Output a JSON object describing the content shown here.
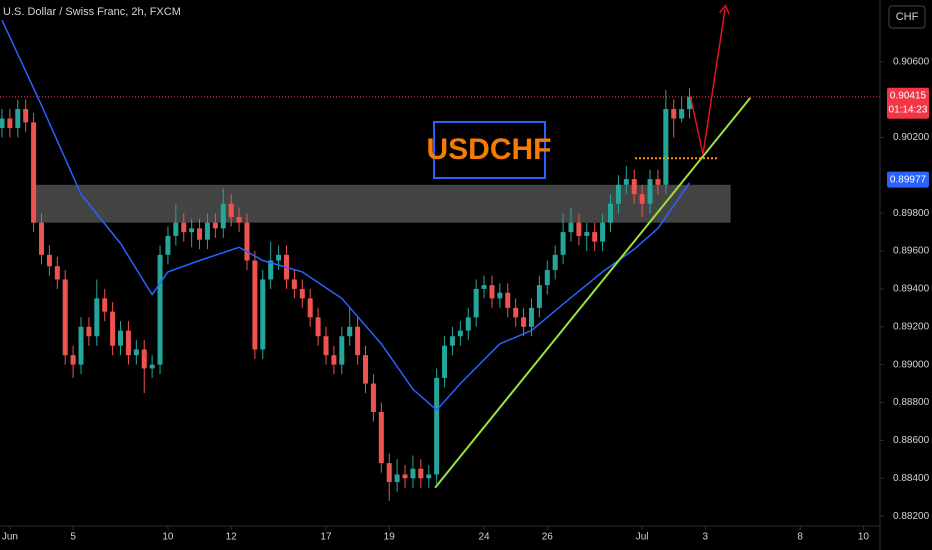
{
  "chart_data": {
    "type": "candlestick",
    "title": "U.S. Dollar / Swiss Franc, 2h, FXCM",
    "annotation_text": "USDCHF",
    "currency_button": "CHF",
    "up_color": "#26a69a",
    "down_color": "#ef5350",
    "xlim": [
      -0.25,
      111.1
    ],
    "ylim": [
      0.88021,
      0.90926
    ],
    "xticks": [
      {
        "value": 1,
        "label": "Jun"
      },
      {
        "value": 9,
        "label": "5"
      },
      {
        "value": 21,
        "label": "10"
      },
      {
        "value": 29,
        "label": "12"
      },
      {
        "value": 41,
        "label": "17"
      },
      {
        "value": 49,
        "label": "19"
      },
      {
        "value": 61,
        "label": "24"
      },
      {
        "value": 69,
        "label": "26"
      },
      {
        "value": 81,
        "label": "Jul"
      },
      {
        "value": 89,
        "label": "3"
      },
      {
        "value": 101,
        "label": "8"
      },
      {
        "value": 109,
        "label": "10"
      }
    ],
    "yticks": [
      {
        "value": 0.906,
        "label": "0.90600"
      },
      {
        "value": 0.902,
        "label": "0.90200"
      },
      {
        "value": 0.898,
        "label": "0.89800"
      },
      {
        "value": 0.896,
        "label": "0.89600"
      },
      {
        "value": 0.894,
        "label": "0.89400"
      },
      {
        "value": 0.892,
        "label": "0.89200"
      },
      {
        "value": 0.89,
        "label": "0.89000"
      },
      {
        "value": 0.888,
        "label": "0.88800"
      },
      {
        "value": 0.886,
        "label": "0.88600"
      },
      {
        "value": 0.884,
        "label": "0.88400"
      },
      {
        "value": 0.882,
        "label": "0.88200"
      }
    ],
    "open": [
      0.9025,
      0.903,
      0.9025,
      0.9035,
      0.9028,
      0.8975,
      0.8958,
      0.8952,
      0.8945,
      0.8905,
      0.89,
      0.892,
      0.8915,
      0.8935,
      0.8928,
      0.891,
      0.8918,
      0.8905,
      0.8908,
      0.8898,
      0.89,
      0.8958,
      0.8968,
      0.8975,
      0.897,
      0.8972,
      0.8966,
      0.8975,
      0.8972,
      0.8985,
      0.8978,
      0.8975,
      0.8955,
      0.8908,
      0.8945,
      0.8955,
      0.8958,
      0.8945,
      0.894,
      0.8935,
      0.8925,
      0.8915,
      0.8905,
      0.89,
      0.8915,
      0.892,
      0.8905,
      0.889,
      0.8875,
      0.8848,
      0.8838,
      0.8842,
      0.884,
      0.8845,
      0.884,
      0.8842,
      0.8893,
      0.891,
      0.8915,
      0.8918,
      0.8925,
      0.894,
      0.8942,
      0.8935,
      0.8938,
      0.893,
      0.8925,
      0.892,
      0.893,
      0.8942,
      0.895,
      0.8958,
      0.897,
      0.8975,
      0.8968,
      0.897,
      0.8965,
      0.8975,
      0.8985,
      0.8995,
      0.8998,
      0.899,
      0.8985,
      0.8998,
      0.8995,
      0.9035,
      0.903,
      0.9035
    ],
    "high": [
      0.9035,
      0.9035,
      0.904,
      0.904,
      0.9033,
      0.898,
      0.8963,
      0.8957,
      0.895,
      0.891,
      0.8925,
      0.8925,
      0.8945,
      0.894,
      0.8933,
      0.8923,
      0.8923,
      0.8913,
      0.8913,
      0.8905,
      0.8963,
      0.8973,
      0.8985,
      0.898,
      0.8977,
      0.8977,
      0.898,
      0.898,
      0.8993,
      0.899,
      0.8983,
      0.898,
      0.896,
      0.895,
      0.8965,
      0.8963,
      0.8963,
      0.895,
      0.8945,
      0.894,
      0.893,
      0.892,
      0.891,
      0.892,
      0.893,
      0.8925,
      0.891,
      0.8895,
      0.888,
      0.8853,
      0.885,
      0.8847,
      0.8852,
      0.885,
      0.8847,
      0.8898,
      0.8915,
      0.892,
      0.8923,
      0.893,
      0.8945,
      0.8947,
      0.8947,
      0.8943,
      0.8943,
      0.8935,
      0.893,
      0.8935,
      0.8947,
      0.8955,
      0.8963,
      0.898,
      0.8983,
      0.898,
      0.8975,
      0.8975,
      0.898,
      0.899,
      0.9,
      0.9005,
      0.9003,
      0.8995,
      0.9003,
      0.9003,
      0.9045,
      0.904,
      0.9042,
      0.9046
    ],
    "low": [
      0.902,
      0.902,
      0.902,
      0.9023,
      0.897,
      0.8953,
      0.8947,
      0.894,
      0.89,
      0.8893,
      0.8895,
      0.891,
      0.891,
      0.8923,
      0.8905,
      0.8905,
      0.89,
      0.89,
      0.8885,
      0.8893,
      0.8895,
      0.8953,
      0.8963,
      0.8965,
      0.8962,
      0.8961,
      0.8961,
      0.8967,
      0.8967,
      0.8973,
      0.897,
      0.895,
      0.8903,
      0.8903,
      0.894,
      0.895,
      0.894,
      0.8935,
      0.893,
      0.892,
      0.891,
      0.89,
      0.8895,
      0.8895,
      0.891,
      0.89,
      0.8885,
      0.887,
      0.8843,
      0.8828,
      0.8833,
      0.8835,
      0.8835,
      0.8835,
      0.8835,
      0.8837,
      0.8888,
      0.8905,
      0.891,
      0.8913,
      0.892,
      0.8935,
      0.893,
      0.893,
      0.8925,
      0.892,
      0.8915,
      0.8915,
      0.8925,
      0.8937,
      0.8945,
      0.8953,
      0.8965,
      0.8963,
      0.896,
      0.896,
      0.896,
      0.897,
      0.898,
      0.899,
      0.8985,
      0.8978,
      0.898,
      0.899,
      0.899,
      0.902,
      0.9028,
      0.903
    ],
    "close": [
      0.903,
      0.9025,
      0.9035,
      0.9028,
      0.8975,
      0.8958,
      0.8952,
      0.8945,
      0.8905,
      0.89,
      0.892,
      0.8915,
      0.8935,
      0.8928,
      0.891,
      0.8918,
      0.8905,
      0.8908,
      0.8898,
      0.89,
      0.8958,
      0.8968,
      0.8975,
      0.897,
      0.8972,
      0.8966,
      0.8975,
      0.8972,
      0.8985,
      0.8978,
      0.8975,
      0.8955,
      0.8908,
      0.8945,
      0.8955,
      0.8958,
      0.8945,
      0.894,
      0.8935,
      0.8925,
      0.8915,
      0.8905,
      0.89,
      0.8915,
      0.892,
      0.8905,
      0.889,
      0.8875,
      0.8848,
      0.8838,
      0.8842,
      0.884,
      0.8845,
      0.884,
      0.8842,
      0.8893,
      0.891,
      0.8915,
      0.8918,
      0.8925,
      0.894,
      0.8942,
      0.8935,
      0.8938,
      0.893,
      0.8925,
      0.892,
      0.893,
      0.8942,
      0.895,
      0.8958,
      0.897,
      0.8975,
      0.8968,
      0.897,
      0.8965,
      0.8975,
      0.8985,
      0.8995,
      0.8998,
      0.899,
      0.8985,
      0.8998,
      0.8995,
      0.9035,
      0.903,
      0.9035,
      0.90415
    ],
    "ma": {
      "color": "#2962ff",
      "x": [
        0,
        5,
        10,
        15,
        19,
        21,
        25,
        30,
        33,
        38,
        43,
        48,
        52,
        55,
        58,
        63,
        67,
        71,
        76,
        80,
        83,
        87
      ],
      "values": [
        0.9082,
        0.9037,
        0.899,
        0.8964,
        0.8937,
        0.8949,
        0.8955,
        0.8962,
        0.8955,
        0.8949,
        0.8935,
        0.8911,
        0.8887,
        0.8876,
        0.889,
        0.8911,
        0.8918,
        0.8932,
        0.8949,
        0.8961,
        0.8972,
        0.8996
      ]
    },
    "last_price": {
      "value": 0.90415,
      "label": "0.90415",
      "countdown": "01:14:23",
      "color": "#f23645"
    },
    "ma_last": {
      "value": 0.89977,
      "label": "0.89977"
    },
    "zone": {
      "x": [
        3.9,
        92.2
      ],
      "y": [
        0.8975,
        0.8995
      ]
    },
    "trendline": {
      "color": "#9be33a",
      "x": [
        54.8,
        94.7
      ],
      "values": [
        0.8835,
        0.9041
      ]
    },
    "level": {
      "color": "#ff9800",
      "x": [
        80.1,
        90.6
      ],
      "values": [
        0.9009,
        0.9009
      ]
    },
    "arrow": {
      "color": "#e0161b",
      "x": [
        87.1,
        88.7,
        91.5
      ],
      "values": [
        0.9042,
        0.9011,
        0.9088
      ]
    }
  }
}
